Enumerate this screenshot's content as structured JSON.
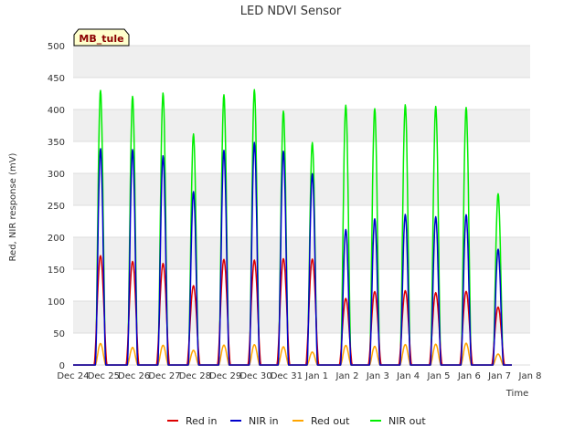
{
  "chart_data": {
    "type": "line",
    "title": "LED NDVI Sensor",
    "xlabel": "Time",
    "ylabel": "Red, NIR response (mV)",
    "badge": "MB_tule",
    "ylim": [
      0,
      500
    ],
    "yticks": [
      0,
      50,
      100,
      150,
      200,
      250,
      300,
      350,
      400,
      450,
      500
    ],
    "x_ticks": [
      "Dec 24",
      "Dec 25",
      "Dec 26",
      "Dec 27",
      "Dec 28",
      "Dec 29",
      "Dec 30",
      "Dec 31",
      "Jan 1",
      "Jan 2",
      "Jan 3",
      "Jan 4",
      "Jan 5",
      "Jan 6",
      "Jan 7",
      "Jan 8"
    ],
    "x_range_days": [
      0,
      15
    ],
    "grid": true,
    "legend_position": "bottom",
    "series": [
      {
        "name": "Red in",
        "color": "#dd0000",
        "peaks": [
          178,
          165,
          170,
          135,
          175,
          165,
          175,
          180,
          112,
          118,
          120,
          122,
          125,
          95
        ]
      },
      {
        "name": "NIR in",
        "color": "#0000cc",
        "peaks": [
          352,
          343,
          350,
          295,
          356,
          350,
          352,
          325,
          228,
          235,
          243,
          250,
          255,
          190
        ]
      },
      {
        "name": "Red out",
        "color": "#ffa500",
        "peaks": [
          35,
          28,
          33,
          25,
          33,
          32,
          30,
          22,
          33,
          30,
          33,
          35,
          37,
          18
        ]
      },
      {
        "name": "NIR out",
        "color": "#00ee00",
        "peaks": [
          447,
          428,
          455,
          393,
          448,
          433,
          418,
          378,
          437,
          412,
          420,
          436,
          437,
          281
        ]
      }
    ],
    "peak_centers_days": [
      0.9,
      1.95,
      2.95,
      3.95,
      4.95,
      5.95,
      6.9,
      7.85,
      8.95,
      9.9,
      10.9,
      11.9,
      12.9,
      13.95
    ]
  }
}
